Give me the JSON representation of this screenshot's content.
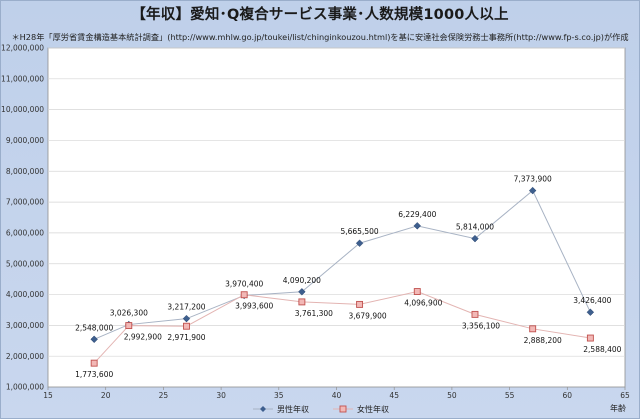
{
  "chart_data": {
    "type": "line",
    "title": "【年収】愛知･Q複合サービス事業･人数規模1000人以上",
    "subtitle": "＊H28年「厚労省賃金構造基本統計調査」(http://www.mhlw.go.jp/toukei/list/chinginkouzou.html)を基に安達社会保険労務士事務所(http://www.fp-s.co.jp)が作成",
    "xlabel": "年齢",
    "ylabel": "",
    "xlim": [
      15,
      65
    ],
    "ylim": [
      1000000,
      12000000
    ],
    "xticks": [
      "15",
      "20",
      "25",
      "30",
      "35",
      "40",
      "45",
      "50",
      "55",
      "60",
      "65"
    ],
    "yticks": [
      "1,000,000",
      "2,000,000",
      "3,000,000",
      "4,000,000",
      "5,000,000",
      "6,000,000",
      "7,000,000",
      "8,000,000",
      "9,000,000",
      "10,000,000",
      "11,000,000",
      "12,000,000"
    ],
    "grid": "horizontal",
    "legend": "bottom",
    "series": [
      {
        "name": "男性年収",
        "color": "#3e5f8e",
        "marker": "diamond",
        "x": [
          19,
          22,
          27,
          32,
          37,
          42,
          47,
          52,
          57,
          62
        ],
        "y": [
          2548000,
          3026300,
          3217200,
          3970400,
          4090200,
          5665500,
          6229400,
          5814000,
          7373900,
          3426400
        ],
        "labels": [
          "2,548,000",
          "3,026,300",
          "3,217,200",
          "3,970,400",
          "4,090,200",
          "5,665,500",
          "6,229,400",
          "5,814,000",
          "7,373,900",
          "3,426,400"
        ]
      },
      {
        "name": "女性年収",
        "color": "#c0504d",
        "marker": "square",
        "x": [
          19,
          22,
          27,
          32,
          37,
          42,
          47,
          52,
          57,
          62
        ],
        "y": [
          1773600,
          2992900,
          2971900,
          3993600,
          3761300,
          3679900,
          4096900,
          3356100,
          2888200,
          2588400
        ],
        "labels": [
          "1,773,600",
          "2,992,900",
          "2,971,900",
          "3,993,600",
          "3,761,300",
          "3,679,900",
          "4,096,900",
          "3,356,100",
          "2,888,200",
          "2,588,400"
        ]
      }
    ]
  }
}
